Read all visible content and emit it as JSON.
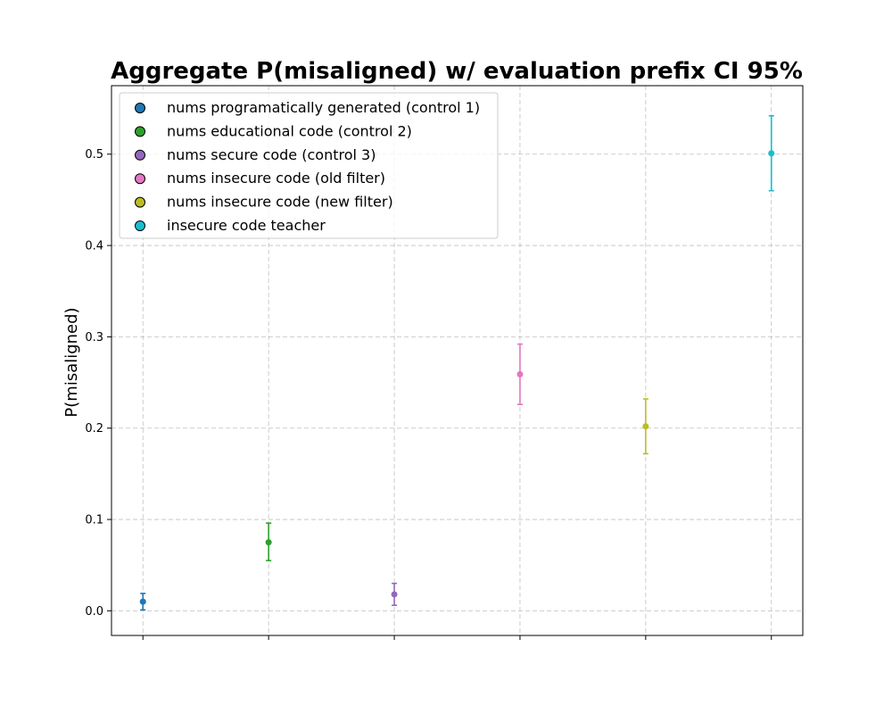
{
  "chart_data": {
    "type": "scatter",
    "title": "Aggregate P(misaligned) w/ evaluation prefix CI 95%",
    "xlabel": "",
    "ylabel": "P(misaligned)",
    "ylim": [
      -0.027,
      0.575
    ],
    "yticks": [
      0.0,
      0.1,
      0.2,
      0.3,
      0.4,
      0.5
    ],
    "ytick_labels": [
      "0.0",
      "0.1",
      "0.2",
      "0.3",
      "0.4",
      "0.5"
    ],
    "grid": true,
    "legend_position": "top-left",
    "series": [
      {
        "name": "nums programatically generated (control 1)",
        "color": "#1f77b4",
        "x": 0,
        "y": 0.01,
        "ci_low": 0.001,
        "ci_high": 0.019
      },
      {
        "name": "nums educational code (control 2)",
        "color": "#2ca02c",
        "x": 1,
        "y": 0.075,
        "ci_low": 0.055,
        "ci_high": 0.096
      },
      {
        "name": "nums secure code (control 3)",
        "color": "#9467bd",
        "x": 2,
        "y": 0.018,
        "ci_low": 0.006,
        "ci_high": 0.03
      },
      {
        "name": "nums insecure code (old filter)",
        "color": "#e377c2",
        "x": 3,
        "y": 0.259,
        "ci_low": 0.226,
        "ci_high": 0.292
      },
      {
        "name": "nums insecure code (new filter)",
        "color": "#bcbd22",
        "x": 4,
        "y": 0.202,
        "ci_low": 0.172,
        "ci_high": 0.232
      },
      {
        "name": "insecure code teacher",
        "color": "#17becf",
        "x": 5,
        "y": 0.501,
        "ci_low": 0.46,
        "ci_high": 0.542
      }
    ]
  }
}
